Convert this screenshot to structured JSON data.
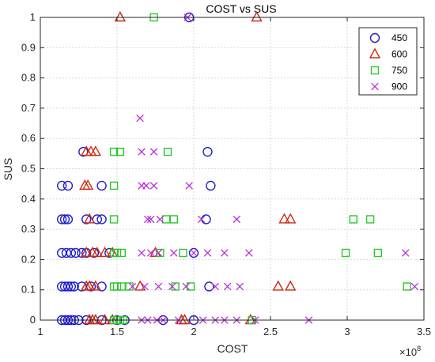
{
  "chart_data": {
    "type": "scatter",
    "title": "COST vs SUS",
    "xlabel": "COST",
    "ylabel": "SUS",
    "x_multiplier_label": "×10",
    "x_multiplier_exponent": "8",
    "xlim": [
      1.0,
      3.5
    ],
    "ylim": [
      0,
      1
    ],
    "xticks": [
      1,
      1.5,
      2,
      2.5,
      3,
      3.5
    ],
    "xtick_labels": [
      "1",
      "1.5",
      "2",
      "2.5",
      "3",
      "3.5"
    ],
    "yticks": [
      0,
      0.1,
      0.2,
      0.3,
      0.4,
      0.5,
      0.6,
      0.7,
      0.8,
      0.9,
      1
    ],
    "ytick_labels": [
      "0",
      "0.1",
      "0.2",
      "0.3",
      "0.4",
      "0.5",
      "0.6",
      "0.7",
      "0.8",
      "0.9",
      "1"
    ],
    "grid": true,
    "legend_position": "top-right",
    "series": [
      {
        "name": "450",
        "marker": "circle",
        "color": "#1f1fcc",
        "points": [
          [
            1.14,
            0
          ],
          [
            1.16,
            0
          ],
          [
            1.18,
            0
          ],
          [
            1.2,
            0
          ],
          [
            1.22,
            0
          ],
          [
            1.25,
            0
          ],
          [
            1.3,
            0
          ],
          [
            1.4,
            0
          ],
          [
            1.5,
            0
          ],
          [
            1.55,
            0
          ],
          [
            1.8,
            0
          ],
          [
            2.0,
            0
          ],
          [
            1.14,
            0.111
          ],
          [
            1.16,
            0.111
          ],
          [
            1.18,
            0.111
          ],
          [
            1.2,
            0.111
          ],
          [
            1.22,
            0.111
          ],
          [
            1.27,
            0.111
          ],
          [
            1.33,
            0.111
          ],
          [
            1.4,
            0.111
          ],
          [
            2.1,
            0.111
          ],
          [
            1.14,
            0.222
          ],
          [
            1.17,
            0.222
          ],
          [
            1.2,
            0.222
          ],
          [
            1.23,
            0.222
          ],
          [
            1.27,
            0.222
          ],
          [
            1.3,
            0.222
          ],
          [
            1.35,
            0.222
          ],
          [
            1.45,
            0.222
          ],
          [
            2.0,
            0.222
          ],
          [
            1.14,
            0.333
          ],
          [
            1.16,
            0.333
          ],
          [
            1.18,
            0.333
          ],
          [
            1.3,
            0.333
          ],
          [
            1.37,
            0.333
          ],
          [
            1.4,
            0.333
          ],
          [
            2.08,
            0.333
          ],
          [
            1.14,
            0.444
          ],
          [
            1.18,
            0.444
          ],
          [
            1.4,
            0.444
          ],
          [
            2.11,
            0.444
          ],
          [
            1.28,
            0.556
          ],
          [
            2.09,
            0.556
          ],
          [
            1.97,
            1.0
          ]
        ]
      },
      {
        "name": "600",
        "marker": "triangle",
        "color": "#cc2b14",
        "points": [
          [
            1.32,
            0
          ],
          [
            1.34,
            0
          ],
          [
            1.36,
            0
          ],
          [
            1.42,
            0
          ],
          [
            1.47,
            0
          ],
          [
            1.92,
            0
          ],
          [
            1.94,
            0
          ],
          [
            2.37,
            0
          ],
          [
            1.3,
            0.111
          ],
          [
            1.32,
            0.111
          ],
          [
            1.36,
            0.111
          ],
          [
            1.65,
            0.111
          ],
          [
            2.55,
            0.111
          ],
          [
            2.63,
            0.111
          ],
          [
            1.3,
            0.222
          ],
          [
            1.34,
            0.222
          ],
          [
            1.37,
            0.222
          ],
          [
            1.42,
            0.222
          ],
          [
            1.47,
            0.222
          ],
          [
            1.75,
            0.222
          ],
          [
            1.32,
            0.333
          ],
          [
            2.59,
            0.333
          ],
          [
            2.63,
            0.333
          ],
          [
            1.29,
            0.444
          ],
          [
            1.31,
            0.444
          ],
          [
            1.3,
            0.556
          ],
          [
            1.33,
            0.556
          ],
          [
            1.36,
            0.556
          ],
          [
            1.52,
            1.0
          ],
          [
            2.41,
            1.0
          ]
        ]
      },
      {
        "name": "750",
        "marker": "square",
        "color": "#2ec72e",
        "points": [
          [
            1.48,
            0
          ],
          [
            1.5,
            0
          ],
          [
            1.52,
            0
          ],
          [
            1.54,
            0
          ],
          [
            2.38,
            0
          ],
          [
            1.48,
            0.111
          ],
          [
            1.5,
            0.111
          ],
          [
            1.53,
            0.111
          ],
          [
            1.58,
            0.111
          ],
          [
            1.88,
            0.111
          ],
          [
            1.98,
            0.111
          ],
          [
            3.39,
            0.111
          ],
          [
            1.48,
            0.222
          ],
          [
            1.5,
            0.222
          ],
          [
            1.53,
            0.222
          ],
          [
            1.78,
            0.222
          ],
          [
            1.93,
            0.222
          ],
          [
            2.99,
            0.222
          ],
          [
            3.2,
            0.222
          ],
          [
            1.48,
            0.333
          ],
          [
            1.82,
            0.333
          ],
          [
            1.87,
            0.333
          ],
          [
            3.04,
            0.333
          ],
          [
            3.15,
            0.333
          ],
          [
            1.48,
            0.444
          ],
          [
            1.48,
            0.556
          ],
          [
            1.52,
            0.556
          ],
          [
            1.83,
            0.556
          ],
          [
            1.74,
            1.0
          ]
        ]
      },
      {
        "name": "900",
        "marker": "x",
        "color": "#b82dd9",
        "points": [
          [
            1.66,
            0
          ],
          [
            1.7,
            0
          ],
          [
            1.76,
            0
          ],
          [
            1.8,
            0
          ],
          [
            1.9,
            0
          ],
          [
            2.06,
            0
          ],
          [
            2.14,
            0
          ],
          [
            2.2,
            0
          ],
          [
            2.28,
            0
          ],
          [
            2.4,
            0
          ],
          [
            2.75,
            0
          ],
          [
            1.6,
            0.111
          ],
          [
            1.68,
            0.111
          ],
          [
            1.77,
            0.111
          ],
          [
            1.86,
            0.111
          ],
          [
            1.95,
            0.111
          ],
          [
            2.14,
            0.111
          ],
          [
            2.22,
            0.111
          ],
          [
            2.3,
            0.111
          ],
          [
            3.44,
            0.111
          ],
          [
            1.66,
            0.222
          ],
          [
            1.72,
            0.222
          ],
          [
            1.77,
            0.222
          ],
          [
            1.87,
            0.222
          ],
          [
            2.0,
            0.222
          ],
          [
            2.09,
            0.222
          ],
          [
            2.2,
            0.222
          ],
          [
            2.36,
            0.222
          ],
          [
            3.38,
            0.222
          ],
          [
            1.7,
            0.333
          ],
          [
            1.72,
            0.333
          ],
          [
            1.78,
            0.333
          ],
          [
            2.05,
            0.333
          ],
          [
            2.28,
            0.333
          ],
          [
            1.66,
            0.444
          ],
          [
            1.69,
            0.444
          ],
          [
            1.74,
            0.444
          ],
          [
            1.97,
            0.444
          ],
          [
            1.66,
            0.556
          ],
          [
            1.74,
            0.556
          ],
          [
            1.65,
            0.667
          ],
          [
            1.96,
            1.0
          ]
        ]
      }
    ]
  }
}
